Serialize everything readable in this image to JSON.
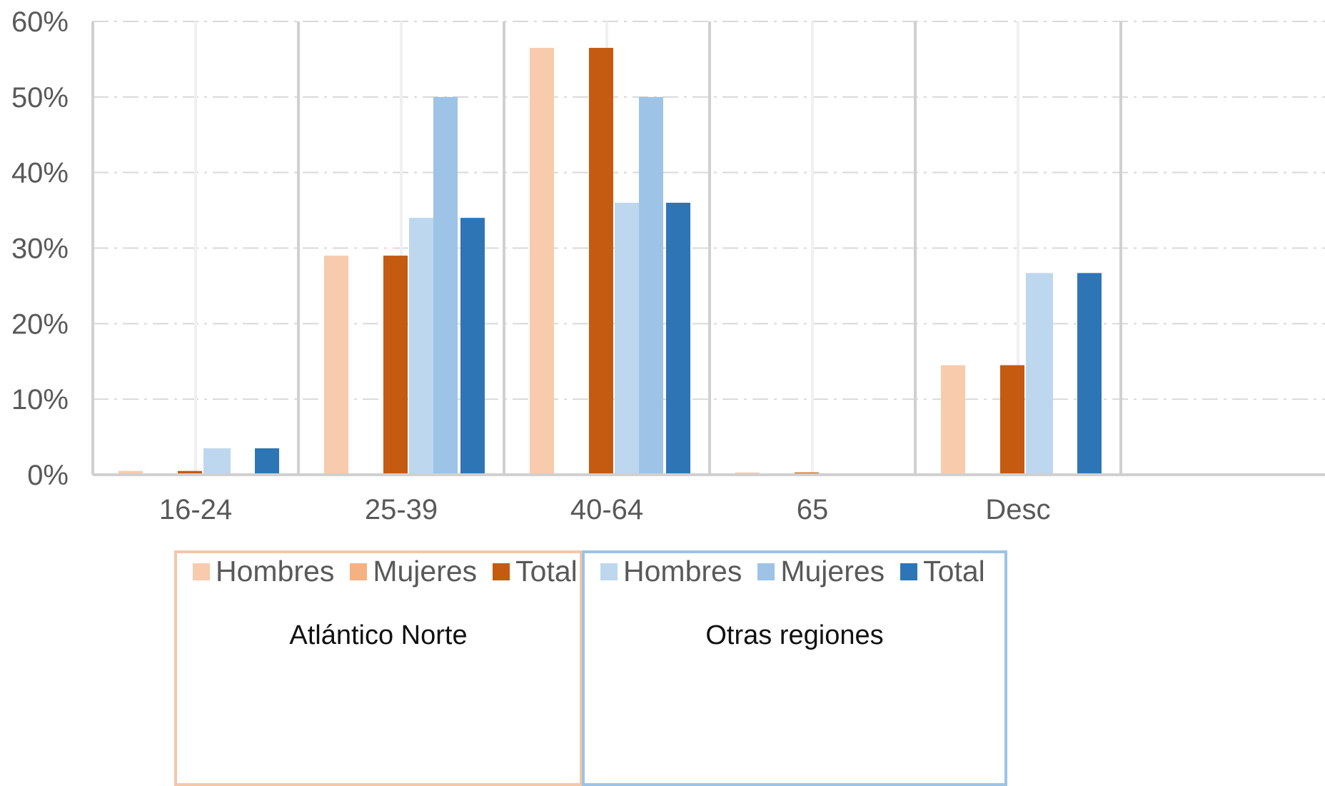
{
  "chart_data": {
    "type": "bar",
    "categories": [
      "16-24",
      "25-39",
      "40-64",
      "65",
      "Desc"
    ],
    "y_ticks": [
      "0%",
      "10%",
      "20%",
      "30%",
      "40%",
      "50%",
      "60%"
    ],
    "ylim": [
      0,
      60
    ],
    "grid": true,
    "groups": [
      {
        "title": "Atlántico Norte",
        "border_color": "#F4C7A8",
        "series": [
          {
            "name": "Hombres",
            "color": "#F8CBAD",
            "values": [
              0.5,
              29,
              56.5,
              0.3,
              14.5
            ]
          },
          {
            "name": "Mujeres",
            "color": "#F4B183",
            "values": [
              0,
              0,
              0,
              0,
              0
            ]
          },
          {
            "name": "Total",
            "color": "#C55A11",
            "values": [
              0.5,
              29,
              56.5,
              0.3,
              14.5
            ]
          }
        ]
      },
      {
        "title": "Otras regiones",
        "border_color": "#9DC3E6",
        "series": [
          {
            "name": "Hombres",
            "color": "#BDD7EE",
            "values": [
              3.5,
              34,
              36,
              0,
              26.7
            ]
          },
          {
            "name": "Mujeres",
            "color": "#9DC3E6",
            "values": [
              0,
              50,
              50,
              0,
              0
            ]
          },
          {
            "name": "Total",
            "color": "#2E75B6",
            "values": [
              3.5,
              34,
              36,
              0,
              26.7
            ]
          }
        ]
      }
    ]
  }
}
